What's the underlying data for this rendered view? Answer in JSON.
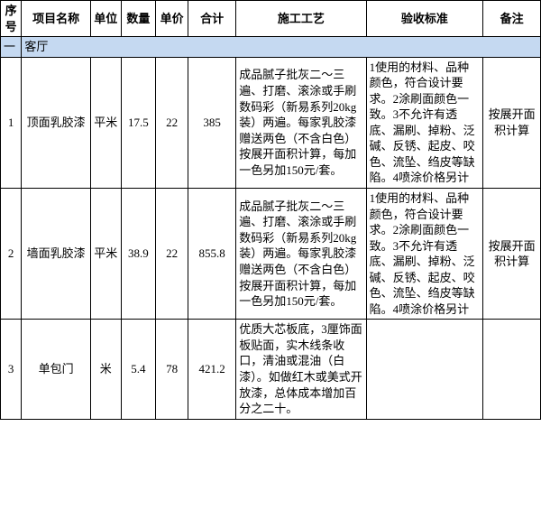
{
  "colors": {
    "section_bg": "#c5d9f1",
    "border": "#000000",
    "background": "#ffffff"
  },
  "columns": [
    {
      "key": "seq",
      "label": "序号",
      "width": 22
    },
    {
      "key": "item",
      "label": "项目名称",
      "width": 72
    },
    {
      "key": "unit",
      "label": "单位",
      "width": 32
    },
    {
      "key": "qty",
      "label": "数量",
      "width": 36
    },
    {
      "key": "price",
      "label": "单价",
      "width": 34
    },
    {
      "key": "total",
      "label": "合计",
      "width": 50
    },
    {
      "key": "proc",
      "label": "施工工艺",
      "width": 136
    },
    {
      "key": "std",
      "label": "验收标准",
      "width": 122
    },
    {
      "key": "note",
      "label": "备注",
      "width": 60
    }
  ],
  "section": {
    "seq": "一",
    "name": "客厅"
  },
  "rows": [
    {
      "seq": "1",
      "item": "顶面乳胶漆",
      "unit": "平米",
      "qty": "17.5",
      "price": "22",
      "total": "385",
      "proc": "成品腻子批灰二～三遍、打磨、滚涂或手刷数码彩（新易系列20kg装）两遍。每家乳胶漆赠送两色（不含白色）按展开面积计算，每加一色另加150元/套。",
      "std": "1使用的材料、品种颜色，符合设计要求。2涂刷面颜色一致。3不允许有透底、漏刷、掉粉、泛碱、反锈、起皮、咬色、流坠、绉皮等缺陷。4喷涂价格另计",
      "note": "按展开面积计算"
    },
    {
      "seq": "2",
      "item": "墙面乳胶漆",
      "unit": "平米",
      "qty": "38.9",
      "price": "22",
      "total": "855.8",
      "proc": "成品腻子批灰二～三遍、打磨、滚涂或手刷数码彩（新易系列20kg装）两遍。每家乳胶漆赠送两色（不含白色）按展开面积计算，每加一色另加150元/套。",
      "std": "1使用的材料、品种颜色，符合设计要求。2涂刷面颜色一致。3不允许有透底、漏刷、掉粉、泛碱、反锈、起皮、咬色、流坠、绉皮等缺陷。4喷涂价格另计",
      "note": "按展开面积计算"
    },
    {
      "seq": "3",
      "item": "单包门",
      "unit": "米",
      "qty": "5.4",
      "price": "78",
      "total": "421.2",
      "proc": "优质大芯板底，3厘饰面板贴面，实木线条收口，清油或混油（白漆）。如做红木或美式开放漆，总体成本增加百分之二十。",
      "std": "",
      "note": ""
    }
  ]
}
